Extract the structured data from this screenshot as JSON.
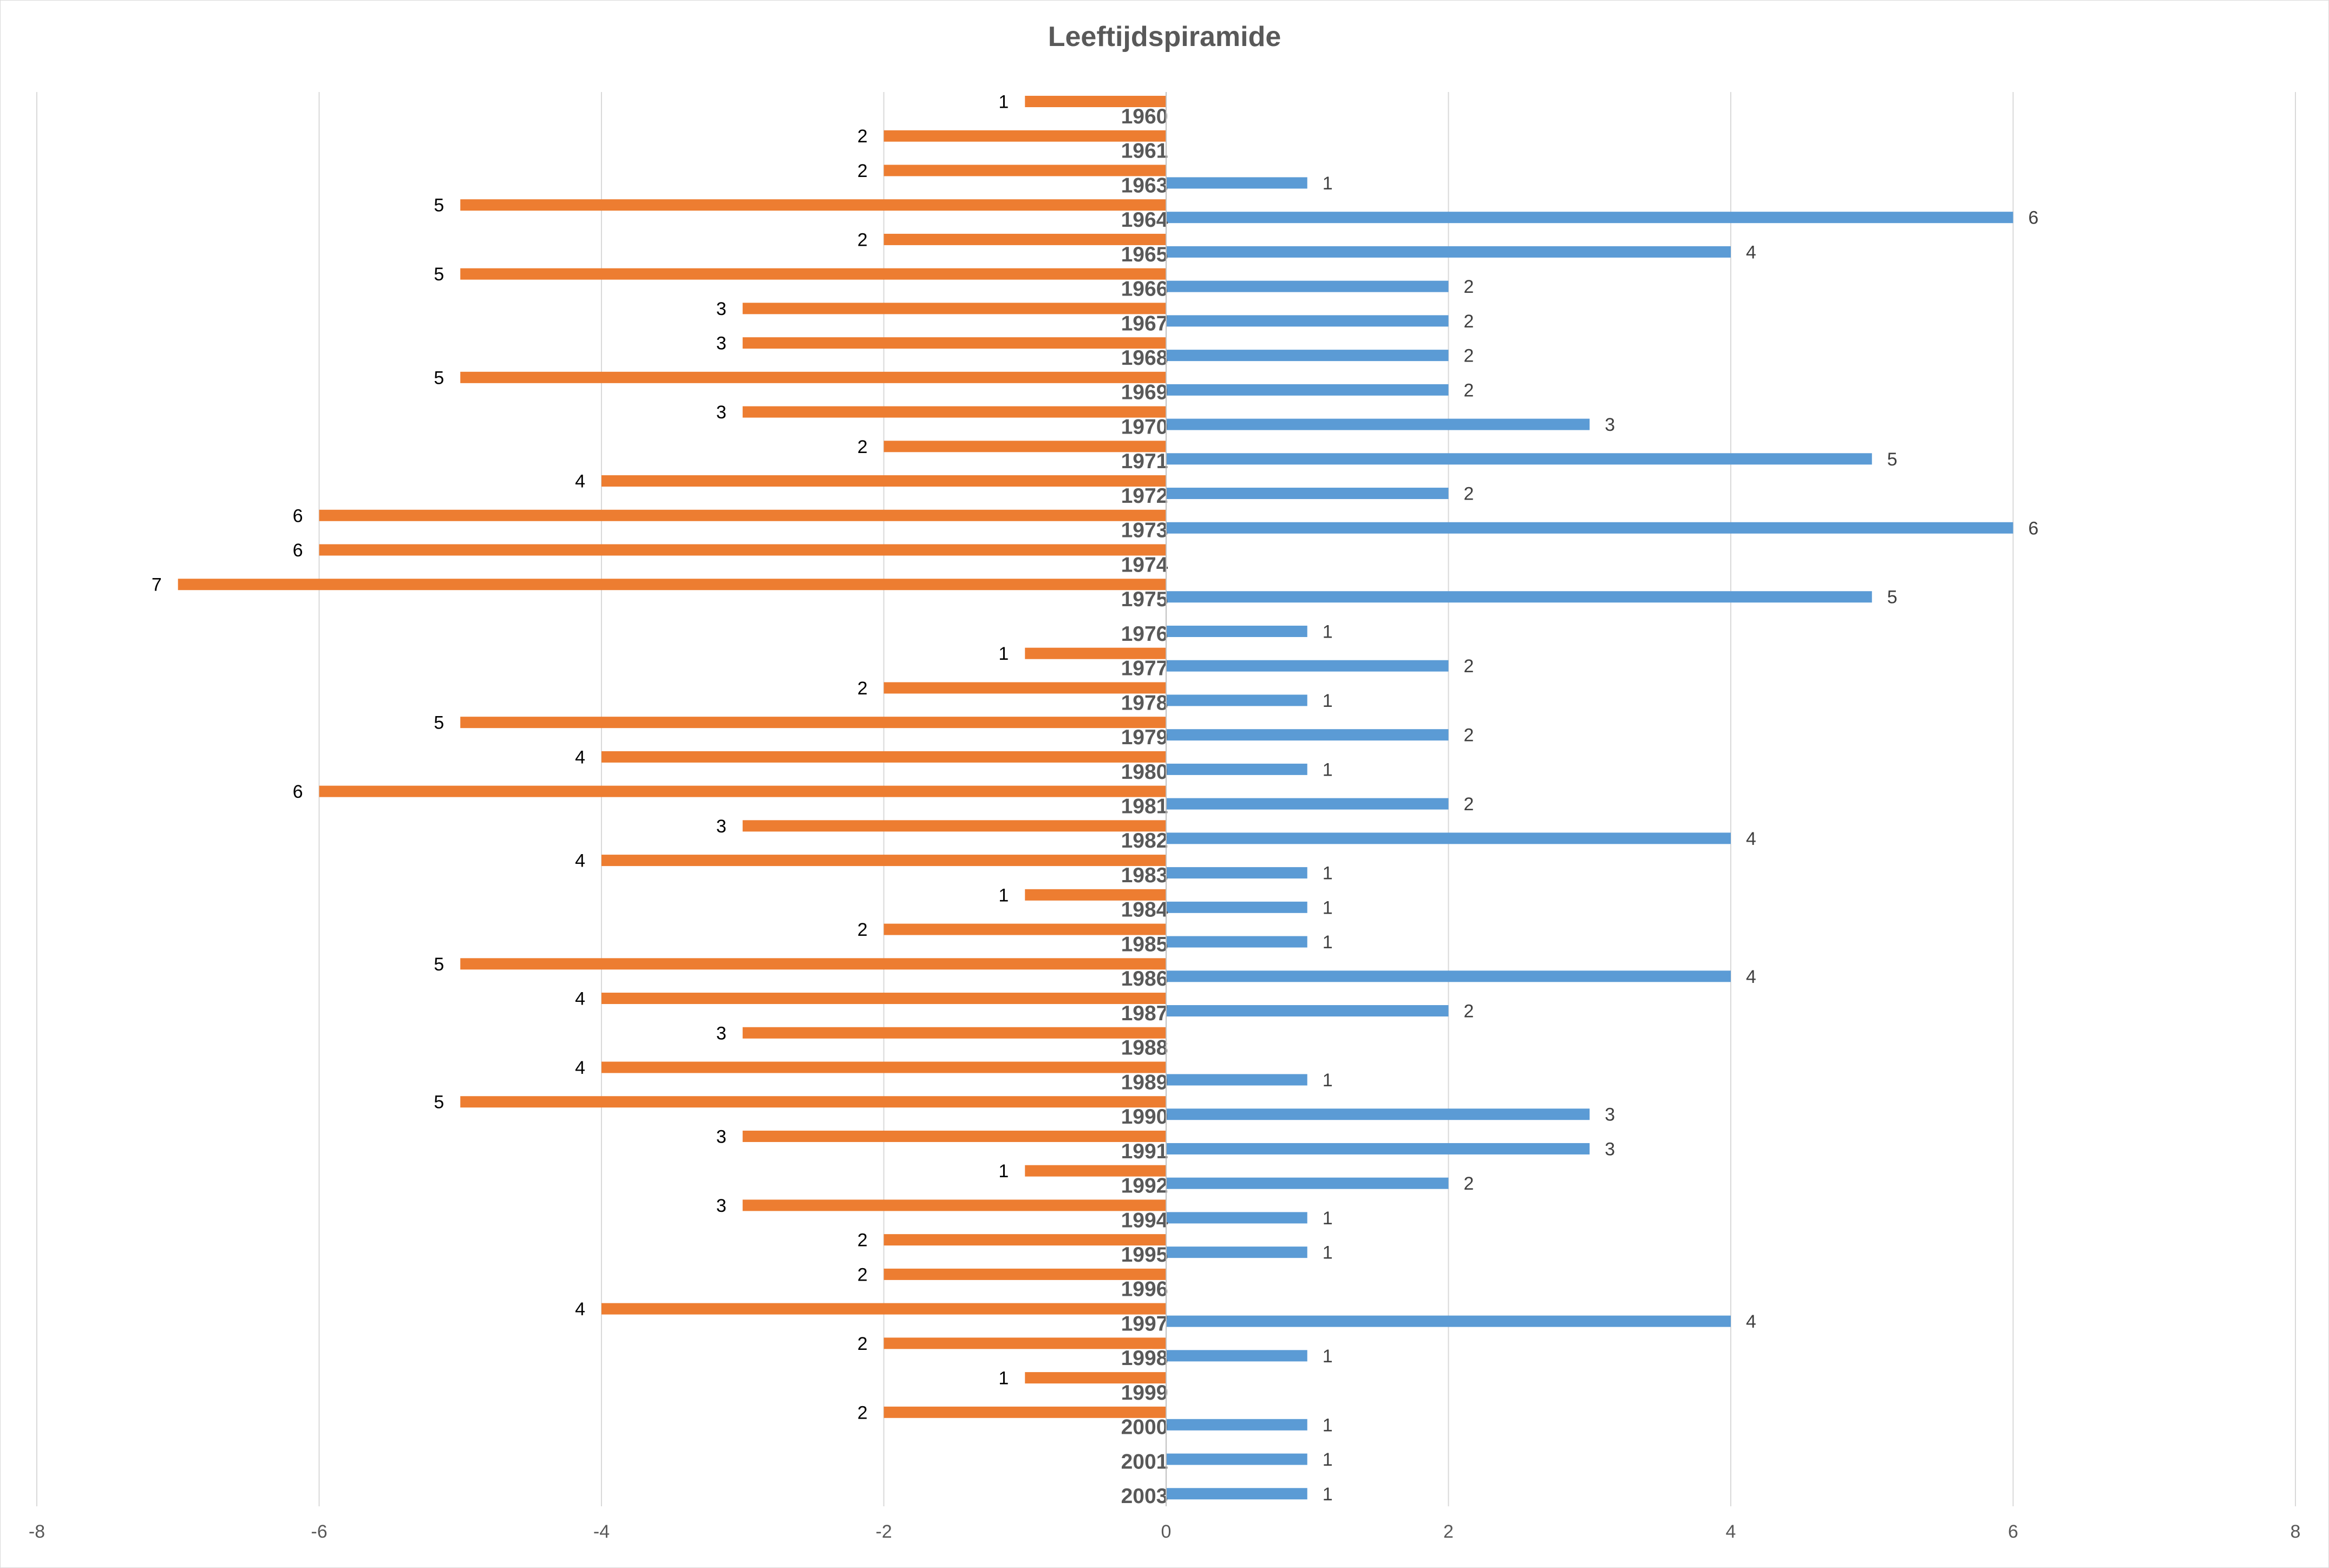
{
  "chart_data": {
    "type": "bar",
    "orientation": "horizontal",
    "title": "Leeftijdspiramide",
    "xlim": [
      -8,
      8
    ],
    "xticks": [
      -8,
      -6,
      -4,
      -2,
      0,
      2,
      4,
      6,
      8
    ],
    "grid": true,
    "legend": "none",
    "colors": {
      "negative_series": "#ED7D31",
      "positive_series": "#5B9BD5"
    },
    "categories": [
      "1960",
      "1961",
      "1963",
      "1964",
      "1965",
      "1966",
      "1967",
      "1968",
      "1969",
      "1970",
      "1971",
      "1972",
      "1973",
      "1974",
      "1975",
      "1976",
      "1977",
      "1978",
      "1979",
      "1980",
      "1981",
      "1982",
      "1983",
      "1984",
      "1985",
      "1986",
      "1987",
      "1988",
      "1989",
      "1990",
      "1991",
      "1992",
      "1994",
      "1995",
      "1996",
      "1997",
      "1998",
      "1999",
      "2000",
      "2001",
      "2003"
    ],
    "series": [
      {
        "values": [
          -1,
          -2,
          -2,
          -5,
          -2,
          -5,
          -3,
          -3,
          -5,
          -3,
          -2,
          -4,
          -6,
          -6,
          -7,
          null,
          -1,
          -2,
          -5,
          -4,
          -6,
          -3,
          -4,
          -1,
          -2,
          -5,
          -4,
          -3,
          -4,
          -5,
          -3,
          -1,
          -3,
          -2,
          -2,
          -4,
          -2,
          -1,
          -2,
          null,
          null
        ],
        "labels": [
          "1",
          "2",
          "2",
          "5",
          "2",
          "5",
          "3",
          "3",
          "5",
          "3",
          "2",
          "4",
          "6",
          "6",
          "7",
          "",
          "1",
          "2",
          "5",
          "4",
          "6",
          "3",
          "4",
          "1",
          "2",
          "5",
          "4",
          "3",
          "4",
          "5",
          "3",
          "1",
          "3",
          "2",
          "2",
          "4",
          "2",
          "1",
          "2",
          "",
          ""
        ]
      },
      {
        "values": [
          null,
          null,
          1,
          6,
          4,
          2,
          2,
          2,
          2,
          3,
          5,
          2,
          6,
          null,
          5,
          1,
          2,
          1,
          2,
          1,
          2,
          4,
          1,
          1,
          1,
          4,
          2,
          null,
          1,
          3,
          3,
          2,
          1,
          1,
          null,
          4,
          1,
          null,
          1,
          1,
          1
        ],
        "labels": [
          "",
          "",
          "1",
          "6",
          "4",
          "2",
          "2",
          "2",
          "2",
          "3",
          "5",
          "2",
          "6",
          "",
          "5",
          "1",
          "2",
          "1",
          "2",
          "1",
          "2",
          "4",
          "1",
          "1",
          "1",
          "4",
          "2",
          "",
          "1",
          "3",
          "3",
          "2",
          "1",
          "1",
          "",
          "4",
          "1",
          "",
          "1",
          "1",
          "1"
        ]
      }
    ]
  }
}
